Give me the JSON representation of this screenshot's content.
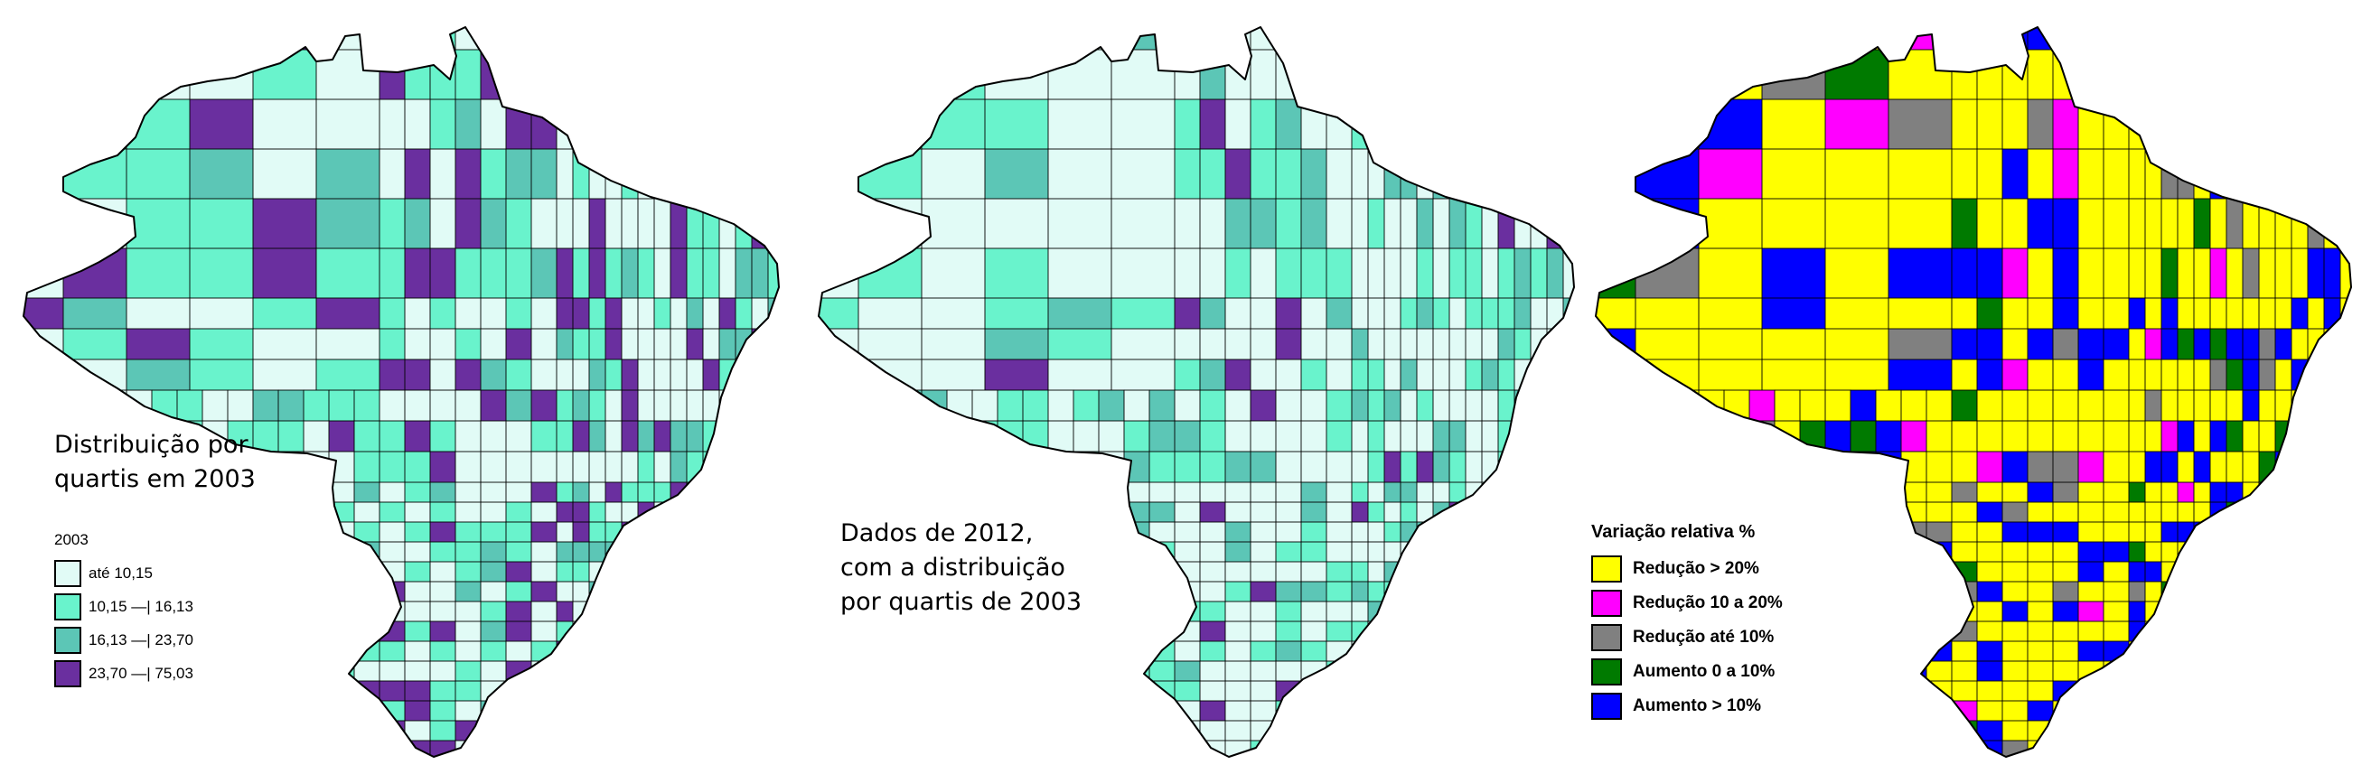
{
  "maps": [
    {
      "id": "quartis-2003",
      "caption": [
        "Distribuição por",
        "quartis em 2003"
      ],
      "legend": {
        "title": "2003",
        "items": [
          {
            "label": "até 10,15",
            "color": "#e1fbf6"
          },
          {
            "label": "10,15 —| 16,13",
            "color": "#69f3cc"
          },
          {
            "label": "16,13 —| 23,70",
            "color": "#5cc6b6"
          },
          {
            "label": "23,70 —| 75,03",
            "color": "#6a2f9f"
          }
        ]
      },
      "fill_weights": [
        0.36,
        0.3,
        0.17,
        0.17
      ]
    },
    {
      "id": "dados-2012",
      "caption": [
        "Dados de 2012,",
        "com a distribuição",
        "por quartis de 2003"
      ],
      "legend": null,
      "palette": [
        "#e1fbf6",
        "#69f3cc",
        "#5cc6b6",
        "#6a2f9f"
      ],
      "fill_weights": [
        0.55,
        0.25,
        0.16,
        0.04
      ]
    },
    {
      "id": "variacao-relativa",
      "caption": [],
      "legend": {
        "title": "Variação relativa %",
        "items": [
          {
            "label": "Redução > 20%",
            "color": "#ffff00"
          },
          {
            "label": "Redução 10 a 20%",
            "color": "#ff00ff"
          },
          {
            "label": "Redução até 10%",
            "color": "#808080"
          },
          {
            "label": "Aumento 0 a 10%",
            "color": "#007a00"
          },
          {
            "label": "Aumento > 10%",
            "color": "#0000ff"
          }
        ]
      },
      "fill_weights": [
        0.62,
        0.04,
        0.07,
        0.04,
        0.23
      ]
    }
  ]
}
